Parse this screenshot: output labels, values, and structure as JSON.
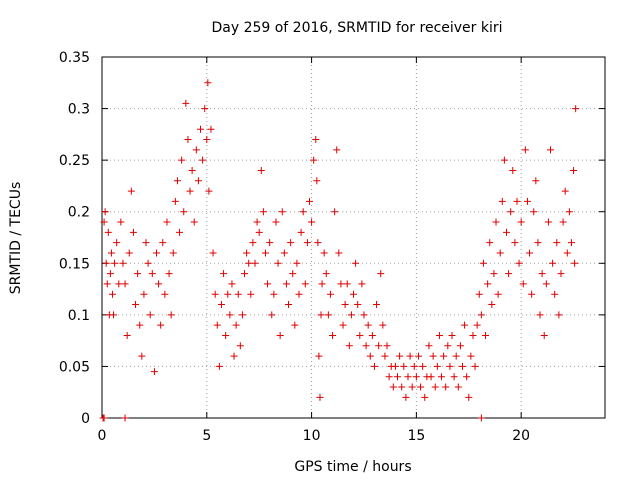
{
  "chart_data": {
    "type": "scatter",
    "title": "Day 259 of 2016, SRMTID for receiver kiri",
    "xlabel": "GPS time / hours",
    "ylabel": "SRMTID / TECUs",
    "xlim": [
      0,
      24
    ],
    "ylim": [
      0,
      0.35
    ],
    "xticks": [
      0,
      5,
      10,
      15,
      20
    ],
    "xtick_labels": [
      "0",
      "5",
      "10",
      "15",
      "20"
    ],
    "yticks": [
      0,
      0.05,
      0.1,
      0.15,
      0.2,
      0.25,
      0.3,
      0.35
    ],
    "ytick_labels": [
      "0",
      "0.05",
      "0.1",
      "0.15",
      "0.2",
      "0.25",
      "0.3",
      "0.35"
    ],
    "grid": true,
    "marker": "+",
    "color": "#e00000",
    "series": [
      {
        "name": "SRMTID",
        "points": [
          [
            0.05,
            0.0
          ],
          [
            0.1,
            0.0
          ],
          [
            1.1,
            0.0
          ],
          [
            18.1,
            0.0
          ],
          [
            0.1,
            0.19
          ],
          [
            0.15,
            0.2
          ],
          [
            0.2,
            0.15
          ],
          [
            0.25,
            0.13
          ],
          [
            0.3,
            0.18
          ],
          [
            0.35,
            0.1
          ],
          [
            0.4,
            0.14
          ],
          [
            0.45,
            0.16
          ],
          [
            0.5,
            0.12
          ],
          [
            0.55,
            0.1
          ],
          [
            0.6,
            0.15
          ],
          [
            0.7,
            0.17
          ],
          [
            0.8,
            0.13
          ],
          [
            0.9,
            0.19
          ],
          [
            1.0,
            0.15
          ],
          [
            1.1,
            0.13
          ],
          [
            1.2,
            0.08
          ],
          [
            1.3,
            0.16
          ],
          [
            1.4,
            0.22
          ],
          [
            1.5,
            0.18
          ],
          [
            1.6,
            0.11
          ],
          [
            1.7,
            0.14
          ],
          [
            1.8,
            0.09
          ],
          [
            1.9,
            0.06
          ],
          [
            2.0,
            0.12
          ],
          [
            2.1,
            0.17
          ],
          [
            2.2,
            0.15
          ],
          [
            2.3,
            0.1
          ],
          [
            2.4,
            0.14
          ],
          [
            2.5,
            0.045
          ],
          [
            2.6,
            0.16
          ],
          [
            2.7,
            0.13
          ],
          [
            2.8,
            0.09
          ],
          [
            2.9,
            0.17
          ],
          [
            3.0,
            0.12
          ],
          [
            3.1,
            0.19
          ],
          [
            3.2,
            0.14
          ],
          [
            3.3,
            0.1
          ],
          [
            3.4,
            0.16
          ],
          [
            3.5,
            0.21
          ],
          [
            3.6,
            0.23
          ],
          [
            3.7,
            0.18
          ],
          [
            3.8,
            0.25
          ],
          [
            3.9,
            0.2
          ],
          [
            4.0,
            0.305
          ],
          [
            4.1,
            0.27
          ],
          [
            4.2,
            0.22
          ],
          [
            4.3,
            0.24
          ],
          [
            4.4,
            0.19
          ],
          [
            4.5,
            0.26
          ],
          [
            4.6,
            0.23
          ],
          [
            4.7,
            0.28
          ],
          [
            4.8,
            0.25
          ],
          [
            4.9,
            0.3
          ],
          [
            5.0,
            0.27
          ],
          [
            5.05,
            0.325
          ],
          [
            5.1,
            0.22
          ],
          [
            5.2,
            0.28
          ],
          [
            5.3,
            0.16
          ],
          [
            5.4,
            0.12
          ],
          [
            5.5,
            0.09
          ],
          [
            5.6,
            0.05
          ],
          [
            5.7,
            0.11
          ],
          [
            5.8,
            0.14
          ],
          [
            5.9,
            0.08
          ],
          [
            6.0,
            0.12
          ],
          [
            6.1,
            0.1
          ],
          [
            6.2,
            0.13
          ],
          [
            6.3,
            0.06
          ],
          [
            6.4,
            0.09
          ],
          [
            6.5,
            0.12
          ],
          [
            6.6,
            0.07
          ],
          [
            6.7,
            0.1
          ],
          [
            6.8,
            0.14
          ],
          [
            6.9,
            0.16
          ],
          [
            7.0,
            0.15
          ],
          [
            7.1,
            0.12
          ],
          [
            7.2,
            0.17
          ],
          [
            7.3,
            0.15
          ],
          [
            7.4,
            0.19
          ],
          [
            7.5,
            0.18
          ],
          [
            7.6,
            0.24
          ],
          [
            7.7,
            0.2
          ],
          [
            7.8,
            0.16
          ],
          [
            7.9,
            0.13
          ],
          [
            8.0,
            0.17
          ],
          [
            8.1,
            0.1
          ],
          [
            8.2,
            0.12
          ],
          [
            8.3,
            0.19
          ],
          [
            8.4,
            0.15
          ],
          [
            8.5,
            0.08
          ],
          [
            8.6,
            0.2
          ],
          [
            8.7,
            0.16
          ],
          [
            8.8,
            0.13
          ],
          [
            8.9,
            0.11
          ],
          [
            9.0,
            0.17
          ],
          [
            9.1,
            0.14
          ],
          [
            9.2,
            0.09
          ],
          [
            9.3,
            0.15
          ],
          [
            9.4,
            0.12
          ],
          [
            9.5,
            0.18
          ],
          [
            9.6,
            0.2
          ],
          [
            9.7,
            0.13
          ],
          [
            9.8,
            0.17
          ],
          [
            9.9,
            0.21
          ],
          [
            10.0,
            0.19
          ],
          [
            10.1,
            0.25
          ],
          [
            10.2,
            0.27
          ],
          [
            10.25,
            0.23
          ],
          [
            10.3,
            0.17
          ],
          [
            10.35,
            0.06
          ],
          [
            10.4,
            0.02
          ],
          [
            10.45,
            0.1
          ],
          [
            10.5,
            0.13
          ],
          [
            10.6,
            0.16
          ],
          [
            10.7,
            0.14
          ],
          [
            10.8,
            0.1
          ],
          [
            10.9,
            0.12
          ],
          [
            11.0,
            0.08
          ],
          [
            11.1,
            0.2
          ],
          [
            11.2,
            0.26
          ],
          [
            11.3,
            0.16
          ],
          [
            11.4,
            0.13
          ],
          [
            11.5,
            0.09
          ],
          [
            11.6,
            0.11
          ],
          [
            11.7,
            0.13
          ],
          [
            11.8,
            0.07
          ],
          [
            11.9,
            0.1
          ],
          [
            12.0,
            0.12
          ],
          [
            12.1,
            0.15
          ],
          [
            12.2,
            0.11
          ],
          [
            12.3,
            0.08
          ],
          [
            12.4,
            0.13
          ],
          [
            12.5,
            0.1
          ],
          [
            12.6,
            0.07
          ],
          [
            12.7,
            0.09
          ],
          [
            12.8,
            0.06
          ],
          [
            12.9,
            0.08
          ],
          [
            13.0,
            0.05
          ],
          [
            13.1,
            0.11
          ],
          [
            13.2,
            0.07
          ],
          [
            13.3,
            0.14
          ],
          [
            13.4,
            0.09
          ],
          [
            13.5,
            0.06
          ],
          [
            13.6,
            0.07
          ],
          [
            13.7,
            0.04
          ],
          [
            13.8,
            0.05
          ],
          [
            13.9,
            0.03
          ],
          [
            14.0,
            0.05
          ],
          [
            14.1,
            0.04
          ],
          [
            14.2,
            0.06
          ],
          [
            14.3,
            0.03
          ],
          [
            14.4,
            0.05
          ],
          [
            14.5,
            0.02
          ],
          [
            14.6,
            0.04
          ],
          [
            14.7,
            0.06
          ],
          [
            14.8,
            0.03
          ],
          [
            14.9,
            0.05
          ],
          [
            15.0,
            0.04
          ],
          [
            15.1,
            0.06
          ],
          [
            15.2,
            0.03
          ],
          [
            15.3,
            0.05
          ],
          [
            15.4,
            0.02
          ],
          [
            15.5,
            0.04
          ],
          [
            15.6,
            0.07
          ],
          [
            15.7,
            0.04
          ],
          [
            15.8,
            0.06
          ],
          [
            15.9,
            0.03
          ],
          [
            16.0,
            0.05
          ],
          [
            16.1,
            0.08
          ],
          [
            16.2,
            0.04
          ],
          [
            16.3,
            0.06
          ],
          [
            16.4,
            0.03
          ],
          [
            16.5,
            0.07
          ],
          [
            16.6,
            0.05
          ],
          [
            16.7,
            0.08
          ],
          [
            16.8,
            0.04
          ],
          [
            16.9,
            0.06
          ],
          [
            17.0,
            0.03
          ],
          [
            17.1,
            0.07
          ],
          [
            17.2,
            0.05
          ],
          [
            17.3,
            0.09
          ],
          [
            17.4,
            0.04
          ],
          [
            17.5,
            0.02
          ],
          [
            17.6,
            0.06
          ],
          [
            17.7,
            0.08
          ],
          [
            17.8,
            0.05
          ],
          [
            17.9,
            0.09
          ],
          [
            18.0,
            0.12
          ],
          [
            18.1,
            0.1
          ],
          [
            18.2,
            0.15
          ],
          [
            18.3,
            0.08
          ],
          [
            18.4,
            0.13
          ],
          [
            18.5,
            0.17
          ],
          [
            18.6,
            0.11
          ],
          [
            18.7,
            0.14
          ],
          [
            18.8,
            0.19
          ],
          [
            18.9,
            0.12
          ],
          [
            19.0,
            0.16
          ],
          [
            19.1,
            0.21
          ],
          [
            19.2,
            0.25
          ],
          [
            19.3,
            0.18
          ],
          [
            19.4,
            0.14
          ],
          [
            19.5,
            0.2
          ],
          [
            19.6,
            0.24
          ],
          [
            19.7,
            0.17
          ],
          [
            19.8,
            0.21
          ],
          [
            19.9,
            0.15
          ],
          [
            20.0,
            0.19
          ],
          [
            20.1,
            0.13
          ],
          [
            20.2,
            0.26
          ],
          [
            20.3,
            0.21
          ],
          [
            20.4,
            0.16
          ],
          [
            20.5,
            0.12
          ],
          [
            20.6,
            0.2
          ],
          [
            20.7,
            0.23
          ],
          [
            20.8,
            0.17
          ],
          [
            20.9,
            0.1
          ],
          [
            21.0,
            0.14
          ],
          [
            21.1,
            0.08
          ],
          [
            21.2,
            0.13
          ],
          [
            21.3,
            0.19
          ],
          [
            21.4,
            0.26
          ],
          [
            21.5,
            0.15
          ],
          [
            21.6,
            0.12
          ],
          [
            21.7,
            0.17
          ],
          [
            21.8,
            0.1
          ],
          [
            21.9,
            0.14
          ],
          [
            22.0,
            0.19
          ],
          [
            22.1,
            0.22
          ],
          [
            22.2,
            0.16
          ],
          [
            22.3,
            0.2
          ],
          [
            22.4,
            0.17
          ],
          [
            22.5,
            0.24
          ],
          [
            22.55,
            0.15
          ],
          [
            22.6,
            0.3
          ]
        ]
      }
    ]
  }
}
